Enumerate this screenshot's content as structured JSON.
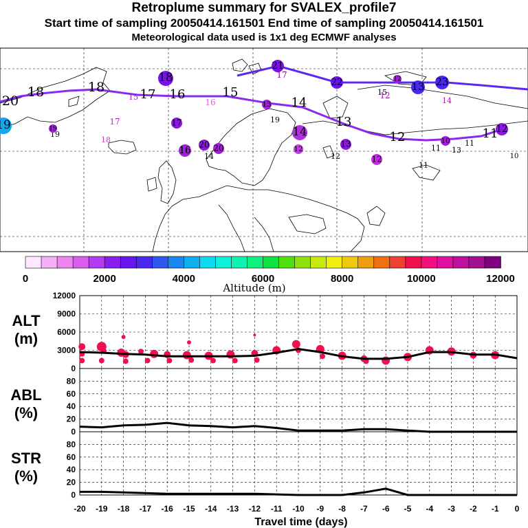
{
  "header": {
    "title": "Retroplume summary for SVALEX_profile7",
    "line2": "Start time of sampling 20050414.161501     End time of sampling 20050414.161501",
    "line3": "Meteorological data used is 1x1 deg ECMWF analyses"
  },
  "colorbar": {
    "tick_labels": [
      "0",
      "2000",
      "4000",
      "6000",
      "8000",
      "10000",
      "12000"
    ],
    "label": "Altitude (m)",
    "colors": [
      "#ffe8ff",
      "#f6b0f6",
      "#ec86ec",
      "#dc5cf0",
      "#b43cf0",
      "#8a1ef0",
      "#6a14f0",
      "#4a28f0",
      "#2f58f0",
      "#1a86f0",
      "#10b0f0",
      "#10d8f0",
      "#10f0d8",
      "#10f0b0",
      "#10f080",
      "#10e040",
      "#50e010",
      "#90e010",
      "#c8e810",
      "#f0f010",
      "#f0c810",
      "#f09c10",
      "#f07010",
      "#f04030",
      "#f01050",
      "#f01080",
      "#e010a0",
      "#c010a0",
      "#a01090",
      "#800080"
    ]
  },
  "map_labels": [
    {
      "t": "18",
      "c": "#000"
    },
    {
      "t": "20",
      "c": "#000"
    },
    {
      "t": "18",
      "c": "#000"
    },
    {
      "t": "17",
      "c": "#000"
    },
    {
      "t": "16",
      "c": "#000"
    },
    {
      "t": "15",
      "c": "#000"
    },
    {
      "t": "14",
      "c": "#000"
    },
    {
      "t": "13",
      "c": "#000"
    },
    {
      "t": "12",
      "c": "#000"
    },
    {
      "t": "11",
      "c": "#000"
    },
    {
      "t": "10",
      "c": "#000"
    },
    {
      "t": "19",
      "c": "#000"
    },
    {
      "t": "16",
      "c": "#e060e0"
    },
    {
      "t": "17",
      "c": "#b030c0"
    },
    {
      "t": "18",
      "c": "#c040c0"
    },
    {
      "t": "19",
      "c": "#000"
    },
    {
      "t": "15",
      "c": "#a020c0"
    },
    {
      "t": "17",
      "c": "#900090"
    },
    {
      "t": "12",
      "c": "#b010b0"
    },
    {
      "t": "14",
      "c": "#b010b0"
    },
    {
      "t": "15",
      "c": "#000"
    },
    {
      "t": "12",
      "c": "#000"
    },
    {
      "t": "11",
      "c": "#000"
    },
    {
      "t": "13",
      "c": "#000"
    },
    {
      "t": "11",
      "c": "#000"
    },
    {
      "t": "11",
      "c": "#000"
    },
    {
      "t": "14",
      "c": "#000"
    }
  ],
  "map_markers": [
    {
      "t": "18",
      "c": "#7a10e8"
    },
    {
      "t": "19",
      "c": "#10a8f0"
    },
    {
      "t": "20",
      "c": "#8a18e0"
    },
    {
      "t": "19",
      "c": "#a020d8"
    },
    {
      "t": "21",
      "c": "#7a10e8"
    },
    {
      "t": "22",
      "c": "#6a14f0"
    },
    {
      "t": "13",
      "c": "#4a28f0"
    },
    {
      "t": "23",
      "c": "#4a28f0"
    },
    {
      "t": "16",
      "c": "#a020d8"
    },
    {
      "t": "20",
      "c": "#a020d8"
    },
    {
      "t": "17",
      "c": "#8a18e0"
    },
    {
      "t": "13",
      "c": "#a020d8"
    },
    {
      "t": "14",
      "c": "#b030e0"
    },
    {
      "t": "13",
      "c": "#8a18e0"
    },
    {
      "t": "12",
      "c": "#c040e0"
    },
    {
      "t": "12",
      "c": "#c030e0"
    },
    {
      "t": "12",
      "c": "#a020d8"
    },
    {
      "t": "10",
      "c": "#a020d8"
    },
    {
      "t": "12",
      "c": "#8a18e0"
    }
  ],
  "chart_data": [
    {
      "type": "line",
      "title": "ALT (m)",
      "panel_label": [
        "ALT",
        "(m)"
      ],
      "xlabel": "Travel time (days)",
      "ylabel": "Altitude (m)",
      "x": [
        -20,
        -19,
        -18,
        -17,
        -16,
        -15,
        -14,
        -13,
        -12,
        -11,
        -10,
        -9,
        -8,
        -7,
        -6,
        -5,
        -4,
        -3,
        -2,
        -1,
        0
      ],
      "values": [
        2700,
        2600,
        2400,
        2300,
        2000,
        2000,
        2000,
        2000,
        2100,
        2600,
        3200,
        2700,
        2000,
        1600,
        1600,
        1900,
        2700,
        2700,
        2300,
        2300,
        1700
      ],
      "ylim": [
        0,
        12000
      ],
      "yticks": [
        0,
        3000,
        6000,
        9000,
        12000
      ],
      "ytick_labels": [
        "0",
        "3000",
        "6000",
        "9000",
        "12000"
      ],
      "scatter_x": [
        -19.9,
        -19.9,
        -19.0,
        -18.9,
        -18.1,
        -17.9,
        -17.2,
        -16.6,
        -16.0,
        -15.1,
        -14.1,
        -13.1,
        -12.0,
        -11.0,
        -10.1,
        -9.0,
        -8.0,
        -7.0,
        -6.0,
        -5.0,
        -4.0,
        -3.0,
        -2.0,
        -1.0,
        -19.9,
        -19.0,
        -17.9,
        -16.9,
        -15.9,
        -14.9,
        -13.9,
        -12.9,
        -11.9,
        -18.0,
        -15.0,
        -12.0,
        -10.0,
        -8.9,
        -6.9
      ],
      "scatter_y": [
        3600,
        2400,
        3600,
        2900,
        2600,
        2300,
        2800,
        2400,
        2300,
        2200,
        2100,
        2300,
        2500,
        3000,
        4000,
        3200,
        2100,
        1600,
        1300,
        1900,
        3000,
        2800,
        2200,
        2200,
        1300,
        1300,
        1200,
        1300,
        1300,
        1400,
        1300,
        1300,
        1400,
        5200,
        4300,
        5500,
        3000,
        2000,
        1200
      ],
      "scatter_r": [
        5,
        4,
        7,
        4,
        6,
        5,
        4,
        6,
        5,
        6,
        6,
        6,
        5,
        6,
        6,
        6,
        6,
        5,
        6,
        6,
        6,
        6,
        5,
        6,
        4,
        4,
        4,
        4,
        4,
        4,
        4,
        4,
        4,
        3,
        3,
        2,
        4,
        4,
        4
      ],
      "scatter_color": "#f01050",
      "line_color": "#000000"
    },
    {
      "type": "line",
      "title": "ABL (%)",
      "panel_label": [
        "ABL",
        "(%)"
      ],
      "xlabel": "Travel time (days)",
      "ylabel": "ABL (%)",
      "x": [
        -20,
        -19,
        -18,
        -17,
        -16,
        -15,
        -14,
        -13,
        -12,
        -11,
        -10,
        -9,
        -8,
        -7,
        -6,
        -5,
        -4,
        -3,
        -2,
        -1,
        0
      ],
      "values": [
        8,
        7,
        10,
        11,
        14,
        10,
        9,
        7,
        9,
        6,
        2,
        2,
        2,
        4,
        4,
        2,
        0,
        0,
        0,
        0,
        0
      ],
      "ylim": [
        0,
        100
      ],
      "yticks": [
        0,
        20,
        40,
        60,
        80
      ],
      "ytick_labels": [
        "0",
        "20",
        "40",
        "60",
        "80"
      ]
    },
    {
      "type": "line",
      "title": "STR (%)",
      "panel_label": [
        "STR",
        "(%)"
      ],
      "xlabel": "Travel time (days)",
      "ylabel": "STR (%)",
      "x": [
        -20,
        -19,
        -18,
        -17,
        -16,
        -15,
        -14,
        -13,
        -12,
        -11,
        -10,
        -9,
        -8,
        -7,
        -6,
        -5,
        -4,
        -3,
        -2,
        -1,
        0
      ],
      "values": [
        5,
        5,
        4,
        3,
        2,
        2,
        2,
        2,
        2,
        1,
        0,
        0,
        0,
        4,
        10,
        0,
        0,
        0,
        0,
        0,
        0
      ],
      "ylim": [
        0,
        100
      ],
      "yticks": [
        0,
        20,
        40,
        60,
        80
      ],
      "ytick_labels": [
        "0",
        "20",
        "40",
        "60",
        "80"
      ]
    }
  ],
  "x_axis": {
    "tick_labels": [
      "-20",
      "-19",
      "-18",
      "-17",
      "-16",
      "-15",
      "-14",
      "-13",
      "-12",
      "-11",
      "-10",
      "-9",
      "-8",
      "-7",
      "-6",
      "-5",
      "-4",
      "-3",
      "-2",
      "-1",
      "0"
    ],
    "label": "Travel time (days)"
  }
}
